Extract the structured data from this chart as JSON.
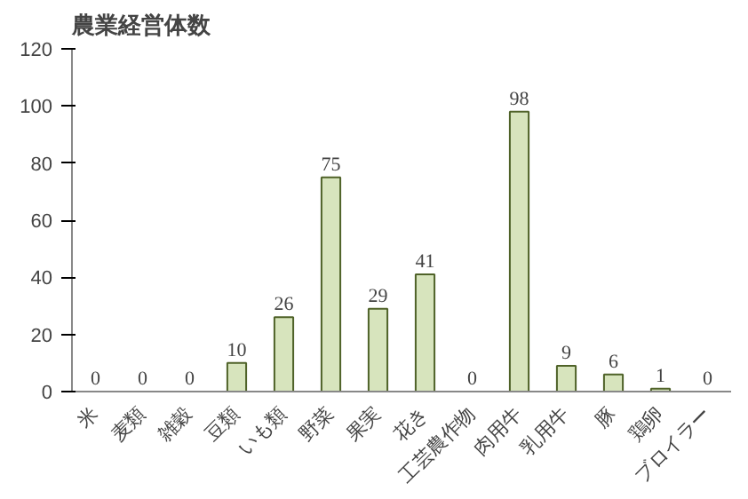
{
  "chart_data": {
    "type": "bar",
    "title": "農業経営体数",
    "categories": [
      "米",
      "麦類",
      "雑穀",
      "豆類",
      "いも類",
      "野菜",
      "果実",
      "花き",
      "工芸農作物",
      "肉用牛",
      "乳用牛",
      "豚",
      "鶏卵",
      "ブロイラー"
    ],
    "values": [
      0,
      0,
      0,
      10,
      26,
      75,
      29,
      41,
      0,
      98,
      9,
      6,
      1,
      0
    ],
    "color": "#d7e4bd",
    "ylim": [
      0,
      120
    ],
    "yticks": [
      0,
      20,
      40,
      60,
      80,
      100,
      120
    ],
    "grid": false,
    "data_labels": true
  }
}
